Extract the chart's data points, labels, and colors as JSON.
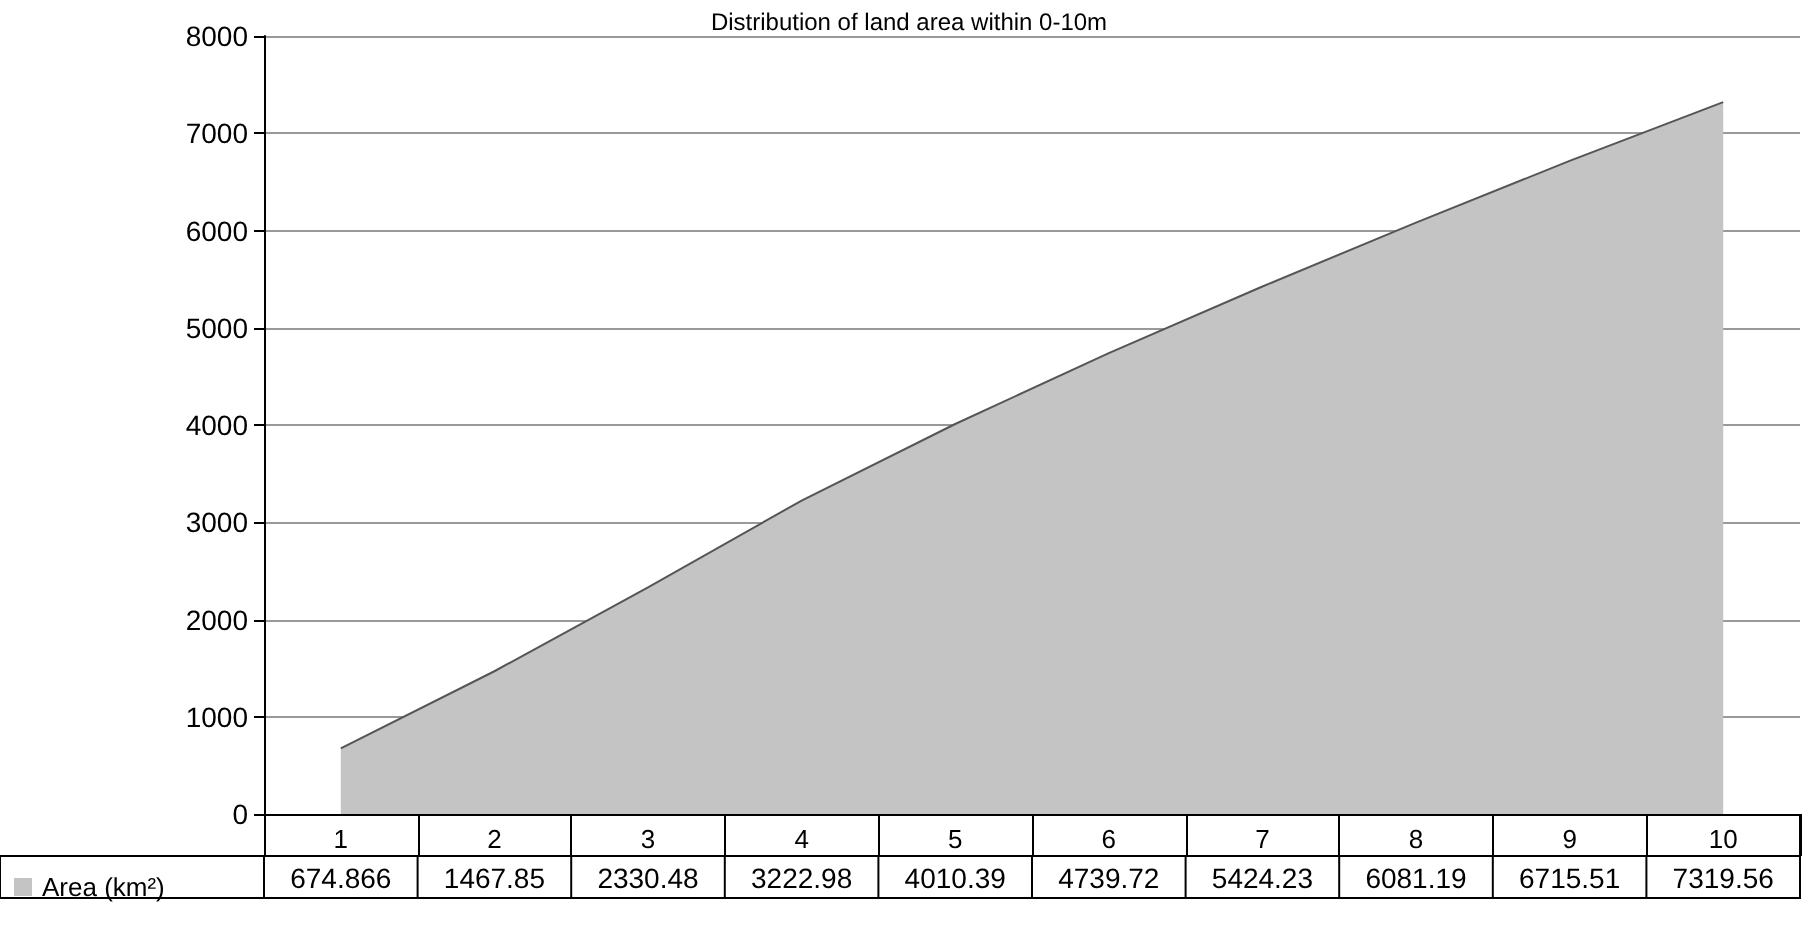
{
  "chart_data": {
    "type": "area",
    "title": "Distribution of land area within 0-10m",
    "categories": [
      "1",
      "2",
      "3",
      "4",
      "5",
      "6",
      "7",
      "8",
      "9",
      "10"
    ],
    "series": [
      {
        "name": "Area (km²)",
        "color": "#c4c4c4",
        "values": [
          674.866,
          1467.85,
          2330.48,
          3222.98,
          4010.39,
          4739.72,
          5424.23,
          6081.19,
          6715.51,
          7319.56
        ]
      }
    ],
    "ylim": [
      0,
      8000
    ],
    "yticks": [
      0,
      1000,
      2000,
      3000,
      4000,
      5000,
      6000,
      7000,
      8000
    ],
    "grid": "y",
    "legend": "bottom left",
    "data_labels": true
  }
}
